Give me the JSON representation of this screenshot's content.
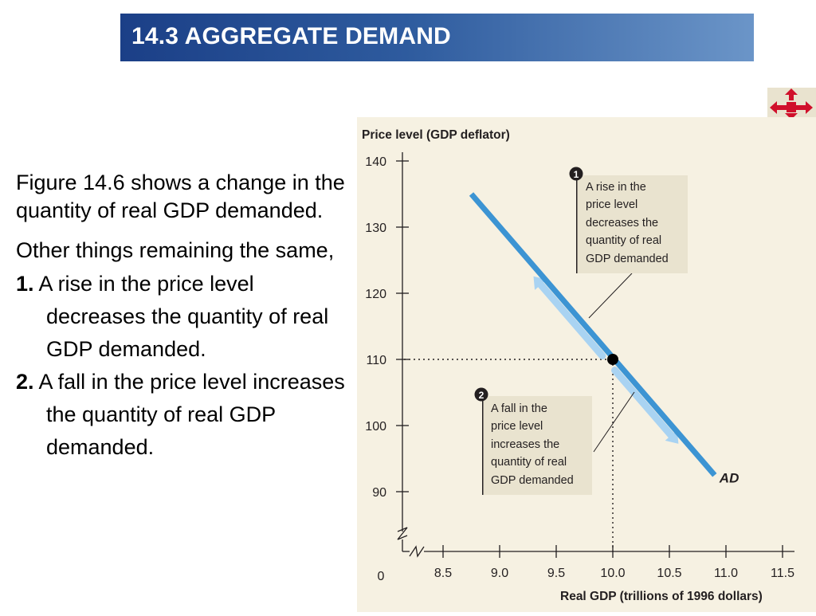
{
  "header": {
    "title": "14.3 AGGREGATE DEMAND"
  },
  "nav": {
    "icon": "home-arrows-icon",
    "color": "#d0102b"
  },
  "text": {
    "para1": "Figure 14.6 shows a change in the quantity of real GDP demanded.",
    "para2": "Other things remaining the same,",
    "item1_num": "1.",
    "item1": "A rise in the price level decreases the quantity of real GDP demanded.",
    "item2_num": "2.",
    "item2": "A fall in the price level increases the quantity of real GDP demanded."
  },
  "chart_data": {
    "type": "line",
    "ylabel": "Price level (GDP deflator)",
    "xlabel": "Real GDP (trillions of 1996 dollars)",
    "origin_label": "0",
    "x_ticks": [
      "8.5",
      "9.0",
      "9.5",
      "10.0",
      "10.5",
      "11.0",
      "11.5"
    ],
    "y_ticks": [
      "90",
      "100",
      "110",
      "120",
      "130",
      "140"
    ],
    "xlim": [
      8.35,
      11.5
    ],
    "ylim": [
      85,
      140
    ],
    "series": [
      {
        "name": "AD",
        "x": [
          8.75,
          10.9
        ],
        "y": [
          135,
          92.5
        ],
        "color": "#3c94d3"
      }
    ],
    "point": {
      "x": 10.0,
      "y": 110
    },
    "annotations": [
      {
        "marker": "1",
        "lines": [
          "A rise in the",
          "price level",
          "decreases the",
          "quantity of real",
          "GDP demanded"
        ]
      },
      {
        "marker": "2",
        "lines": [
          "A fall in the",
          "price level",
          "increases the",
          "quantity of real",
          "GDP demanded"
        ]
      }
    ],
    "colors": {
      "panel": "#f6f1e2",
      "annotation_box": "#e9e3cf",
      "arrow": "#a9d3f2",
      "curve": "#3c94d3"
    }
  }
}
